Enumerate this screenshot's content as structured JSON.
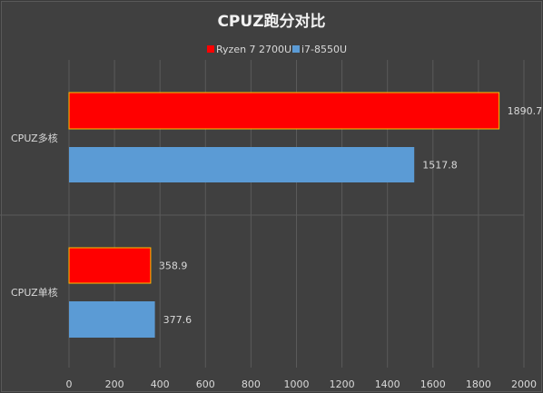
{
  "chart_data": {
    "type": "bar",
    "orientation": "horizontal",
    "title": "CPUZ跑分对比",
    "categories": [
      "CPUZ多核",
      "CPUZ单核"
    ],
    "series": [
      {
        "name": "Ryzen 7 2700U",
        "color": "#ff0000",
        "values": [
          1890.7,
          358.9
        ]
      },
      {
        "name": "i7-8550U",
        "color": "#5b9bd5",
        "values": [
          1517.8,
          377.6
        ]
      }
    ],
    "xlim": [
      0,
      2000
    ],
    "xticks": [
      0,
      200,
      400,
      600,
      800,
      1000,
      1200,
      1400,
      1600,
      1800,
      2000
    ],
    "grid": true,
    "legend_position": "top"
  }
}
